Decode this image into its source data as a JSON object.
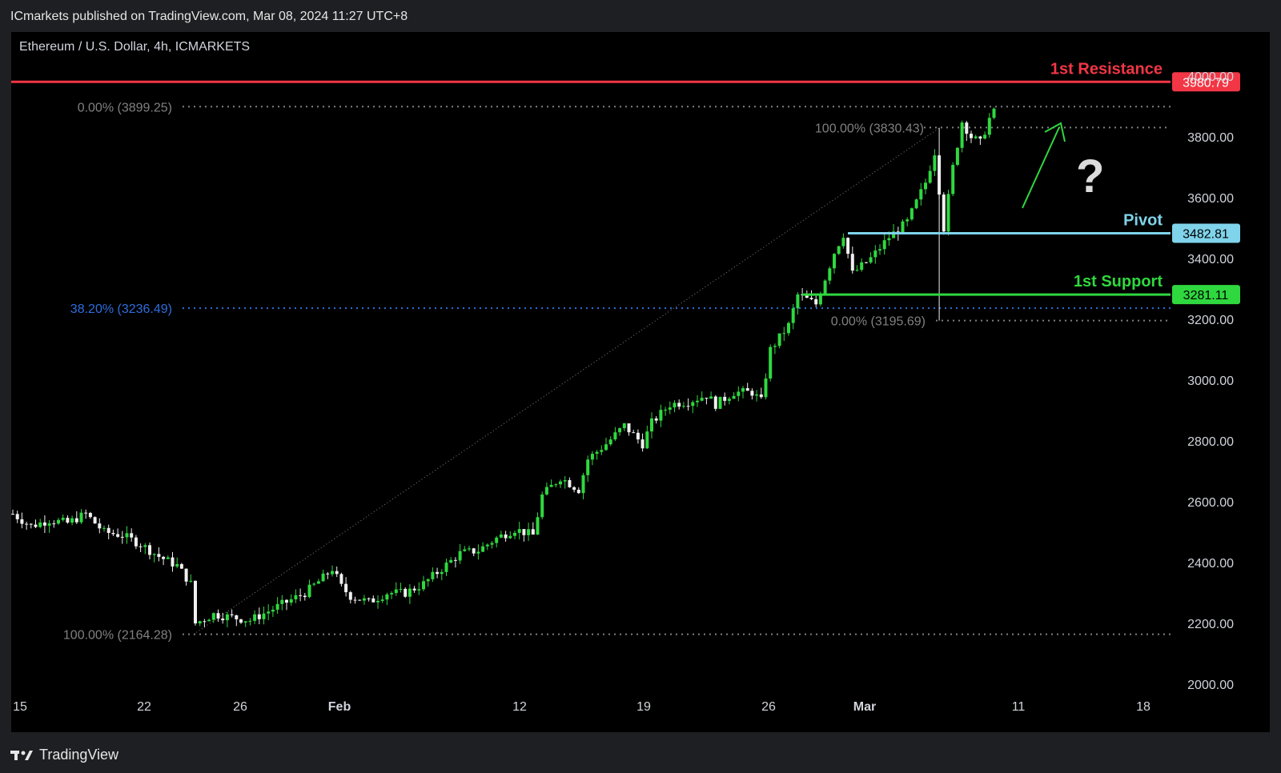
{
  "header": {
    "published_by": "ICmarkets published on TradingView.com, Mar 08, 2024 11:27 UTC+8"
  },
  "footer": {
    "brand": "TradingView"
  },
  "chart_data": {
    "type": "candlestick",
    "symbol_label": "Ethereum / U.S. Dollar, 4h, ICMARKETS",
    "x_labels": [
      "15",
      "22",
      "26",
      "Feb",
      "12",
      "19",
      "26",
      "Mar",
      "11",
      "18"
    ],
    "y_ticks": [
      "2000.00",
      "2200.00",
      "2400.00",
      "2600.00",
      "2800.00",
      "3000.00",
      "3200.00",
      "3400.00",
      "3600.00",
      "3800.00",
      "4000.00"
    ],
    "ylim": [
      1950,
      4080
    ],
    "levels": [
      {
        "name": "1st Resistance",
        "value": 3980.79,
        "label": "3980.79",
        "color": "#f23645"
      },
      {
        "name": "Pivot",
        "value": 3482.81,
        "label": "3482.81",
        "color": "#7fd3ea"
      },
      {
        "name": "1st Support",
        "value": 3281.11,
        "label": "3281.11",
        "color": "#2fd83f"
      }
    ],
    "fib_labels": [
      {
        "text": "0.00% (3899.25)",
        "value": 3899.25,
        "color": "#808080"
      },
      {
        "text": "38.20% (3236.49)",
        "value": 3236.49,
        "color": "#2e6ee0"
      },
      {
        "text": "100.00% (2164.28)",
        "value": 2164.28,
        "color": "#808080"
      },
      {
        "text": "100.00% (3830.43)",
        "value": 3830.43,
        "color": "#808080"
      },
      {
        "text": "0.00% (3195.69)",
        "value": 3195.69,
        "color": "#808080"
      }
    ],
    "annotation": {
      "question_mark": "?",
      "color": "#2fd83f"
    },
    "price_path": [
      [
        0,
        2560
      ],
      [
        4,
        2520
      ],
      [
        8,
        2540
      ],
      [
        12,
        2530
      ],
      [
        16,
        2560
      ],
      [
        20,
        2500
      ],
      [
        24,
        2490
      ],
      [
        28,
        2460
      ],
      [
        32,
        2420
      ],
      [
        36,
        2390
      ],
      [
        39,
        2330
      ],
      [
        40,
        2200
      ],
      [
        44,
        2230
      ],
      [
        48,
        2220
      ],
      [
        52,
        2210
      ],
      [
        56,
        2240
      ],
      [
        60,
        2270
      ],
      [
        64,
        2300
      ],
      [
        68,
        2350
      ],
      [
        70,
        2380
      ],
      [
        72,
        2320
      ],
      [
        74,
        2290
      ],
      [
        78,
        2270
      ],
      [
        82,
        2300
      ],
      [
        86,
        2300
      ],
      [
        90,
        2330
      ],
      [
        94,
        2380
      ],
      [
        98,
        2430
      ],
      [
        102,
        2440
      ],
      [
        106,
        2480
      ],
      [
        110,
        2510
      ],
      [
        114,
        2490
      ],
      [
        116,
        2620
      ],
      [
        120,
        2680
      ],
      [
        124,
        2640
      ],
      [
        126,
        2740
      ],
      [
        130,
        2790
      ],
      [
        134,
        2850
      ],
      [
        138,
        2790
      ],
      [
        140,
        2860
      ],
      [
        144,
        2920
      ],
      [
        148,
        2930
      ],
      [
        152,
        2950
      ],
      [
        154,
        2920
      ],
      [
        158,
        2960
      ],
      [
        162,
        2960
      ],
      [
        164,
        2930
      ],
      [
        166,
        3100
      ],
      [
        170,
        3180
      ],
      [
        172,
        3280
      ],
      [
        176,
        3250
      ],
      [
        180,
        3420
      ],
      [
        182,
        3480
      ],
      [
        184,
        3350
      ],
      [
        188,
        3400
      ],
      [
        192,
        3470
      ],
      [
        196,
        3520
      ],
      [
        200,
        3650
      ],
      [
        202,
        3750
      ],
      [
        204,
        3500
      ],
      [
        206,
        3700
      ],
      [
        208,
        3850
      ],
      [
        210,
        3800
      ],
      [
        212,
        3780
      ],
      [
        214,
        3860
      ],
      [
        216,
        3900
      ]
    ]
  }
}
